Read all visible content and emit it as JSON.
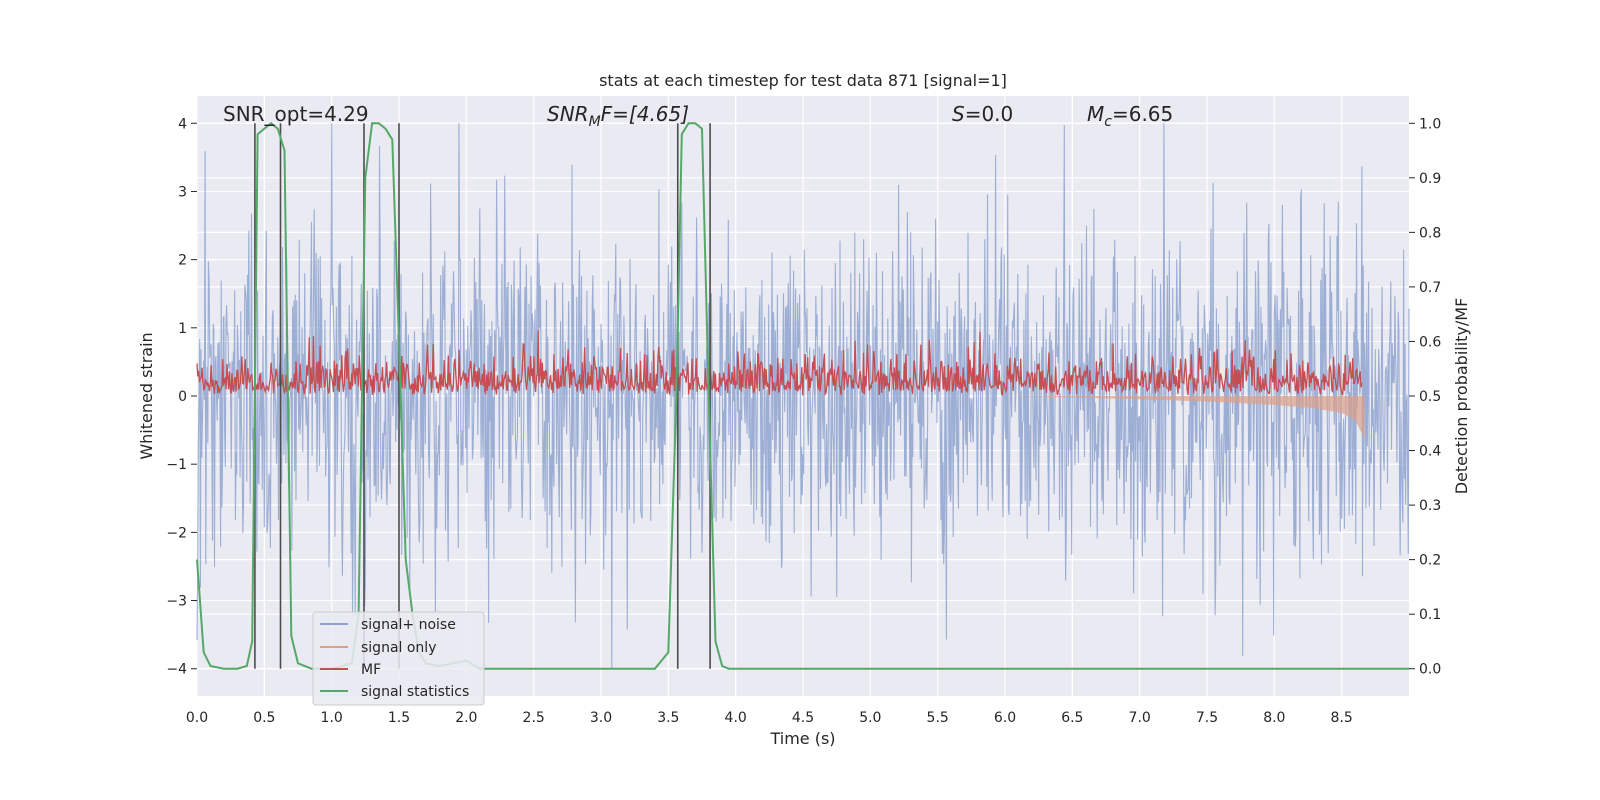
{
  "chart_data": {
    "type": "line",
    "title": "stats at each timestep for test data 871 [signal=1]",
    "xlabel": "Time (s)",
    "ylabel": "Whitened strain",
    "y2label": "Detection probability/MF",
    "xlim": [
      0,
      9.0
    ],
    "ylim": [
      -4.4,
      4.4
    ],
    "y2lim": [
      -0.05,
      1.05
    ],
    "xticks": [
      "0.0",
      "0.5",
      "1.0",
      "1.5",
      "2.0",
      "2.5",
      "3.0",
      "3.5",
      "4.0",
      "4.5",
      "5.0",
      "5.5",
      "6.0",
      "6.5",
      "7.0",
      "7.5",
      "8.0",
      "8.5"
    ],
    "yticks": [
      "−4",
      "−3",
      "−2",
      "−1",
      "0",
      "1",
      "2",
      "3",
      "4"
    ],
    "y2ticks": [
      "0.0",
      "0.1",
      "0.2",
      "0.3",
      "0.4",
      "0.5",
      "0.6",
      "0.7",
      "0.8",
      "0.9",
      "1.0"
    ],
    "grid": true,
    "legend_position": "lower-left",
    "colors": {
      "background": "#eaeaf2",
      "noise": "#8ea3cf",
      "signal": "#dd9f89",
      "mf": "#c44e52",
      "stat": "#55a868",
      "vline": "#4d4d4d"
    },
    "annotations": {
      "snr_opt": "SNR_opt=4.29",
      "snr_mf_main": "SNR",
      "snr_mf_sub": "M",
      "snr_mf_rest": "F=[4.65]",
      "s_main": "S",
      "s_rest": "=0.0",
      "mc_main": "M",
      "mc_sub": "c",
      "mc_rest": "=6.65"
    },
    "detection_windows": [
      [
        0.43,
        0.62
      ],
      [
        1.24,
        1.5
      ],
      [
        3.57,
        3.81
      ]
    ],
    "series": [
      {
        "name": "signal+ noise",
        "axis": "left",
        "description_range": [
          -4.0,
          4.0
        ]
      },
      {
        "name": "signal only",
        "axis": "left",
        "x": [
          6.0,
          6.5,
          7.0,
          7.5,
          8.0,
          8.3,
          8.5,
          8.6,
          8.65,
          8.67
        ],
        "values": [
          0,
          -0.02,
          -0.05,
          -0.08,
          -0.13,
          -0.18,
          -0.25,
          -0.35,
          -0.55,
          -0.65
        ]
      },
      {
        "name": "MF",
        "axis": "right",
        "values_range": [
          0.5,
          0.62
        ]
      },
      {
        "name": "signal statistics",
        "axis": "right",
        "x": [
          0.0,
          0.05,
          0.1,
          0.2,
          0.3,
          0.37,
          0.41,
          0.45,
          0.5,
          0.55,
          0.6,
          0.65,
          0.7,
          0.75,
          0.85,
          1.0,
          1.15,
          1.2,
          1.25,
          1.3,
          1.35,
          1.4,
          1.45,
          1.5,
          1.55,
          1.6,
          1.65,
          1.7,
          1.8,
          1.9,
          2.0,
          2.1,
          2.5,
          3.0,
          3.4,
          3.5,
          3.56,
          3.6,
          3.65,
          3.7,
          3.75,
          3.8,
          3.85,
          3.9,
          3.95,
          4.0,
          4.5,
          5.0,
          6.0,
          7.0,
          8.0,
          8.5,
          9.0
        ],
        "values": [
          0.2,
          0.03,
          0.005,
          0.0,
          0.0,
          0.005,
          0.05,
          0.98,
          0.99,
          1.0,
          0.99,
          0.95,
          0.06,
          0.01,
          0.0,
          0.0,
          0.01,
          0.1,
          0.9,
          1.0,
          1.0,
          0.99,
          0.97,
          0.6,
          0.2,
          0.1,
          0.03,
          0.01,
          0.005,
          0.01,
          0.015,
          0.0,
          0.0,
          0.0,
          0.0,
          0.03,
          0.5,
          0.98,
          1.0,
          1.0,
          0.99,
          0.5,
          0.05,
          0.005,
          0.0,
          0.0,
          0.0,
          0.0,
          0.0,
          0.0,
          0.0,
          0.0,
          0.0
        ]
      }
    ]
  }
}
